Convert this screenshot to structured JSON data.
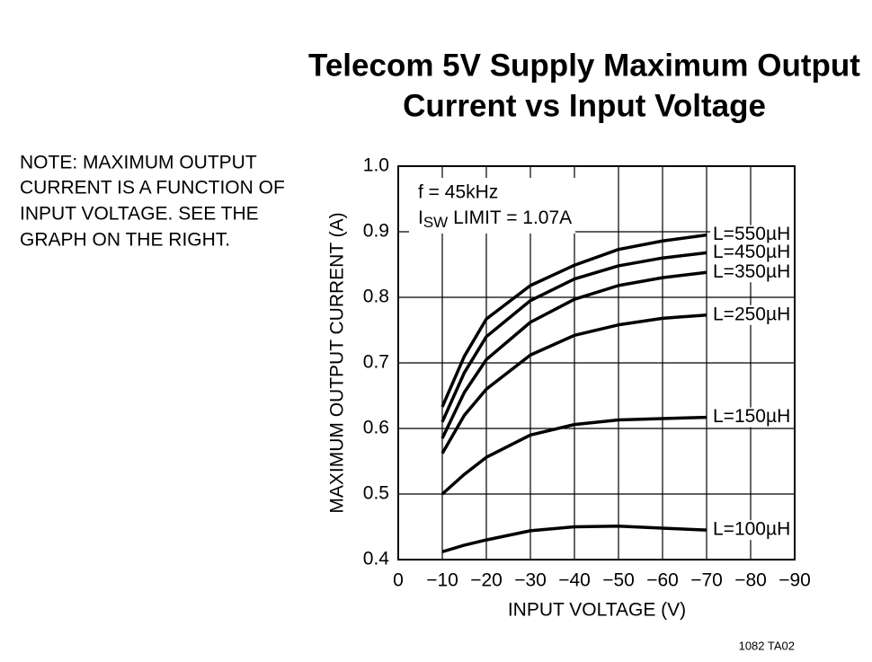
{
  "chart_data": {
    "type": "line",
    "title_lines": [
      "Telecom 5V Supply Maximum Output",
      "Current vs Input Voltage"
    ],
    "note_lines": [
      "NOTE: MAXIMUM OUTPUT",
      "CURRENT IS A FUNCTION OF",
      "INPUT VOLTAGE. SEE THE",
      "GRAPH ON THE RIGHT."
    ],
    "x_label": "INPUT VOLTAGE (V)",
    "y_label": "MAXIMUM OUTPUT CURRENT (A)",
    "annotation": {
      "line1": "f = 45kHz",
      "line2_main": "I",
      "line2_sub": "SW",
      "line2_rest": " LIMIT = 1.07A"
    },
    "footer": "1082 TA02",
    "x": [
      -10,
      -15,
      -20,
      -30,
      -40,
      -50,
      -60,
      -70
    ],
    "series": [
      {
        "name": "L=550µH",
        "color": "#000000",
        "values": [
          0.633,
          0.71,
          0.767,
          0.818,
          0.849,
          0.873,
          0.886,
          0.895
        ]
      },
      {
        "name": "L=450µH",
        "color": "#000000",
        "values": [
          0.61,
          0.685,
          0.74,
          0.795,
          0.828,
          0.848,
          0.86,
          0.868
        ]
      },
      {
        "name": "L=350µH",
        "color": "#000000",
        "values": [
          0.585,
          0.655,
          0.705,
          0.762,
          0.797,
          0.818,
          0.83,
          0.838
        ]
      },
      {
        "name": "L=250µH",
        "color": "#000000",
        "values": [
          0.562,
          0.62,
          0.66,
          0.712,
          0.742,
          0.758,
          0.768,
          0.773
        ]
      },
      {
        "name": "L=150µH",
        "color": "#000000",
        "values": [
          0.5,
          0.53,
          0.556,
          0.59,
          0.606,
          0.613,
          0.615,
          0.617
        ]
      },
      {
        "name": "L=100µH",
        "color": "#000000",
        "values": [
          0.412,
          0.422,
          0.43,
          0.444,
          0.45,
          0.451,
          0.448,
          0.445
        ]
      }
    ],
    "xlim": [
      0,
      -90
    ],
    "xticks": [
      0,
      {
        "value": -10,
        "label": "−10"
      },
      {
        "value": -20,
        "label": "−20"
      },
      {
        "value": -30,
        "label": "−30"
      },
      {
        "value": -40,
        "label": "−40"
      },
      {
        "value": -50,
        "label": "−50"
      },
      {
        "value": -60,
        "label": "−60"
      },
      {
        "value": -70,
        "label": "−70"
      },
      {
        "value": -80,
        "label": "−80"
      },
      {
        "value": -90,
        "label": "−90"
      }
    ],
    "ylim": [
      0.4,
      1.0
    ],
    "yticks": [
      0.4,
      0.5,
      0.6,
      0.7,
      0.8,
      0.9,
      {
        "value": 1.0,
        "label": "1.0"
      }
    ],
    "grid": true
  }
}
